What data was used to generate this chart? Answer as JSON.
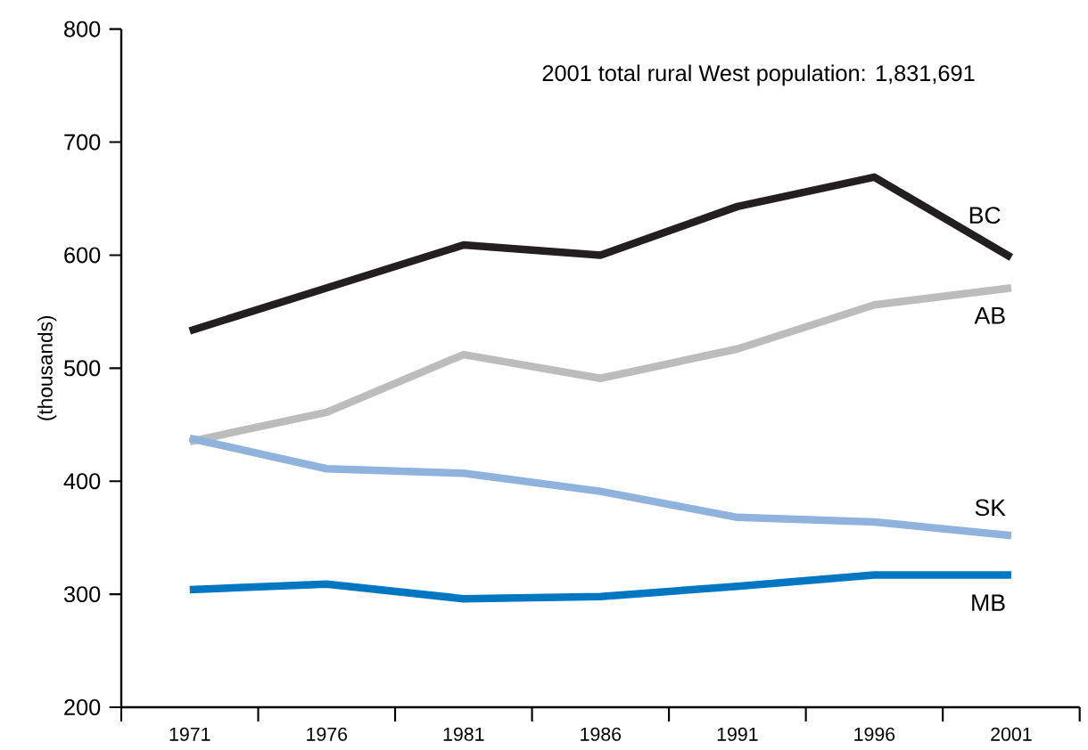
{
  "chart_data": {
    "type": "line",
    "ylabel": "(thousands)",
    "annotations": [
      "2001 total rural West population: 1,831,691"
    ],
    "categories": [
      "1971",
      "1976",
      "1981",
      "1986",
      "1991",
      "1996",
      "2001"
    ],
    "ylim": [
      200,
      800
    ],
    "yticks": [
      200,
      300,
      400,
      500,
      600,
      700,
      800
    ],
    "grid": false,
    "legend": false,
    "marker": "none",
    "line_style": "solid",
    "series": [
      {
        "name": "BC",
        "color": "#231f20",
        "values": [
          533,
          571,
          609,
          600,
          643,
          669,
          598
        ]
      },
      {
        "name": "AB",
        "color": "#bcbcbc",
        "values": [
          435,
          461,
          512,
          491,
          517,
          556,
          571
        ]
      },
      {
        "name": "SK",
        "color": "#8fb3dd",
        "values": [
          438,
          411,
          407,
          391,
          368,
          364,
          352
        ]
      },
      {
        "name": "MB",
        "color": "#0077c0",
        "values": [
          304,
          309,
          296,
          298,
          307,
          317,
          317
        ]
      }
    ]
  }
}
